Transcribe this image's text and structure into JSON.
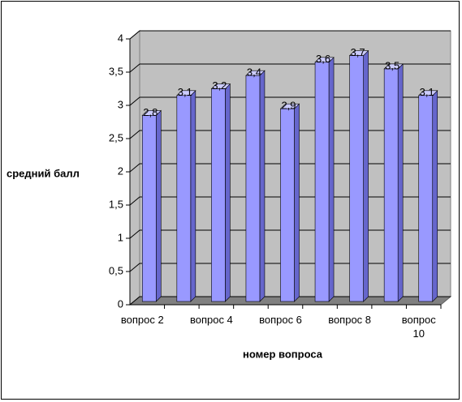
{
  "chart_data": {
    "type": "bar3d",
    "x_label": "номер вопроса",
    "y_label": "средний балл",
    "categories": [
      "вопрос 2",
      null,
      "вопрос 4",
      null,
      "вопрос 6",
      null,
      "вопрос 8",
      null,
      "вопрос 10"
    ],
    "values": [
      2.8,
      3.1,
      3.2,
      3.4,
      2.9,
      3.6,
      3.7,
      3.5,
      3.1
    ],
    "value_labels": [
      "2,8",
      "3,1",
      "3,2",
      "3,4",
      "2,9",
      "3,6",
      "3,7",
      "3,5",
      "3,1"
    ],
    "color": "#9999ff",
    "ylim": [
      0,
      4
    ],
    "yticks": [
      0,
      {
        "value": 0.5,
        "label": "0,5"
      },
      1,
      {
        "value": 1.5,
        "label": "1,5"
      },
      2,
      {
        "value": 2.5,
        "label": "2,5"
      },
      3,
      {
        "value": 3.5,
        "label": "3,5"
      },
      4
    ],
    "grid": true
  }
}
